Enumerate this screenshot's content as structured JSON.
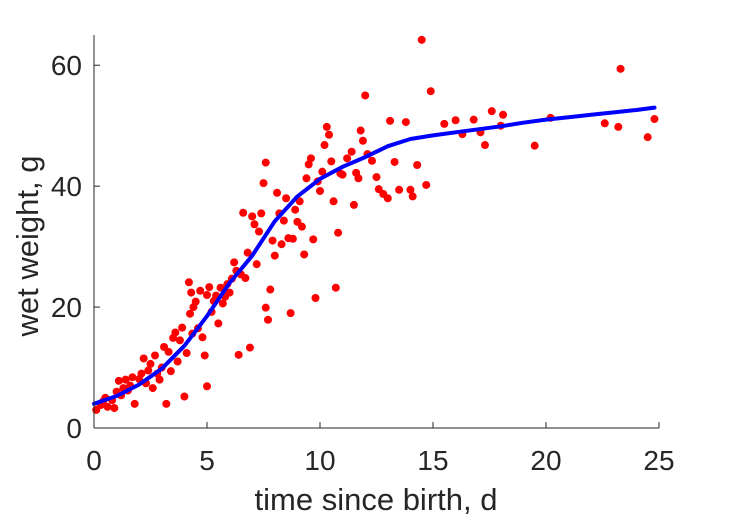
{
  "chart_data": {
    "type": "scatter",
    "title": "",
    "xlabel": "time since birth, d",
    "ylabel": "wet weight, g",
    "xlim": [
      0,
      25
    ],
    "ylim": [
      0,
      65
    ],
    "xticks": [
      0,
      5,
      10,
      15,
      20,
      25
    ],
    "yticks": [
      0,
      20,
      40,
      60
    ],
    "grid": false,
    "legend": "none",
    "series": [
      {
        "kind": "scatter",
        "color": "#ff0000",
        "points": [
          [
            0.1,
            3.0
          ],
          [
            0.3,
            3.8
          ],
          [
            0.4,
            4.4
          ],
          [
            0.5,
            5.0
          ],
          [
            0.6,
            3.5
          ],
          [
            0.8,
            4.6
          ],
          [
            0.9,
            3.3
          ],
          [
            1.0,
            6.0
          ],
          [
            1.1,
            7.8
          ],
          [
            1.2,
            5.4
          ],
          [
            1.3,
            6.6
          ],
          [
            1.4,
            8.0
          ],
          [
            1.5,
            6.2
          ],
          [
            1.6,
            7.0
          ],
          [
            1.7,
            8.4
          ],
          [
            1.8,
            4.0
          ],
          [
            2.0,
            8.1
          ],
          [
            2.1,
            9.0
          ],
          [
            2.2,
            11.5
          ],
          [
            2.3,
            7.4
          ],
          [
            2.4,
            9.5
          ],
          [
            2.5,
            10.6
          ],
          [
            2.6,
            6.6
          ],
          [
            2.7,
            12.0
          ],
          [
            2.8,
            9.0
          ],
          [
            2.9,
            8.0
          ],
          [
            3.0,
            10.0
          ],
          [
            3.1,
            13.4
          ],
          [
            3.2,
            4.0
          ],
          [
            3.3,
            12.6
          ],
          [
            3.4,
            9.4
          ],
          [
            3.5,
            14.9
          ],
          [
            3.6,
            15.8
          ],
          [
            3.7,
            11.0
          ],
          [
            3.8,
            14.5
          ],
          [
            3.9,
            16.6
          ],
          [
            4.0,
            5.2
          ],
          [
            4.1,
            12.4
          ],
          [
            4.2,
            24.1
          ],
          [
            4.25,
            18.9
          ],
          [
            4.3,
            22.4
          ],
          [
            4.35,
            15.6
          ],
          [
            4.4,
            20.0
          ],
          [
            4.5,
            20.9
          ],
          [
            4.6,
            16.5
          ],
          [
            4.7,
            22.7
          ],
          [
            4.8,
            15.0
          ],
          [
            4.9,
            12.0
          ],
          [
            5.0,
            6.9
          ],
          [
            5.0,
            22.0
          ],
          [
            5.1,
            23.3
          ],
          [
            5.2,
            19.2
          ],
          [
            5.3,
            21.0
          ],
          [
            5.4,
            21.9
          ],
          [
            5.5,
            17.3
          ],
          [
            5.6,
            23.2
          ],
          [
            5.7,
            20.6
          ],
          [
            5.8,
            21.7
          ],
          [
            5.9,
            23.8
          ],
          [
            6.0,
            22.4
          ],
          [
            6.1,
            24.7
          ],
          [
            6.2,
            27.4
          ],
          [
            6.3,
            26.0
          ],
          [
            6.4,
            12.1
          ],
          [
            6.5,
            25.4
          ],
          [
            6.6,
            35.6
          ],
          [
            6.7,
            24.8
          ],
          [
            6.8,
            29.0
          ],
          [
            6.9,
            13.3
          ],
          [
            7.0,
            35.0
          ],
          [
            7.1,
            33.7
          ],
          [
            7.2,
            27.1
          ],
          [
            7.3,
            32.5
          ],
          [
            7.4,
            35.5
          ],
          [
            7.5,
            40.5
          ],
          [
            7.6,
            43.9
          ],
          [
            7.6,
            19.9
          ],
          [
            7.7,
            17.9
          ],
          [
            7.8,
            22.9
          ],
          [
            7.9,
            31.0
          ],
          [
            8.0,
            28.5
          ],
          [
            8.1,
            38.9
          ],
          [
            8.2,
            35.5
          ],
          [
            8.3,
            30.4
          ],
          [
            8.4,
            34.3
          ],
          [
            8.5,
            38.0
          ],
          [
            8.6,
            31.4
          ],
          [
            8.7,
            19.0
          ],
          [
            8.8,
            31.3
          ],
          [
            8.9,
            36.1
          ],
          [
            9.0,
            34.1
          ],
          [
            9.1,
            37.5
          ],
          [
            9.2,
            33.3
          ],
          [
            9.3,
            28.7
          ],
          [
            9.4,
            41.3
          ],
          [
            9.5,
            43.6
          ],
          [
            9.6,
            44.6
          ],
          [
            9.7,
            31.2
          ],
          [
            9.8,
            21.5
          ],
          [
            9.9,
            40.8
          ],
          [
            10.0,
            39.2
          ],
          [
            10.1,
            42.4
          ],
          [
            10.2,
            46.8
          ],
          [
            10.3,
            49.8
          ],
          [
            10.4,
            48.5
          ],
          [
            10.5,
            44.1
          ],
          [
            10.6,
            37.5
          ],
          [
            10.7,
            23.2
          ],
          [
            10.8,
            32.3
          ],
          [
            10.9,
            42.1
          ],
          [
            11.0,
            41.9
          ],
          [
            11.2,
            44.6
          ],
          [
            11.4,
            45.7
          ],
          [
            11.5,
            36.9
          ],
          [
            11.6,
            42.2
          ],
          [
            11.7,
            41.3
          ],
          [
            11.8,
            49.2
          ],
          [
            11.9,
            47.5
          ],
          [
            12.0,
            55.0
          ],
          [
            12.1,
            45.3
          ],
          [
            12.3,
            44.2
          ],
          [
            12.5,
            41.5
          ],
          [
            12.6,
            39.5
          ],
          [
            12.8,
            38.7
          ],
          [
            13.0,
            38.0
          ],
          [
            13.1,
            50.8
          ],
          [
            13.3,
            44.0
          ],
          [
            13.5,
            39.4
          ],
          [
            13.8,
            50.6
          ],
          [
            14.0,
            39.4
          ],
          [
            14.1,
            38.3
          ],
          [
            14.3,
            43.5
          ],
          [
            14.5,
            64.2
          ],
          [
            14.7,
            40.2
          ],
          [
            14.9,
            55.7
          ],
          [
            15.5,
            50.3
          ],
          [
            16.0,
            50.9
          ],
          [
            16.3,
            48.6
          ],
          [
            16.8,
            51.0
          ],
          [
            17.1,
            48.9
          ],
          [
            17.3,
            46.8
          ],
          [
            17.6,
            52.4
          ],
          [
            18.0,
            50.0
          ],
          [
            18.1,
            51.8
          ],
          [
            19.5,
            46.7
          ],
          [
            20.2,
            51.3
          ],
          [
            22.6,
            50.4
          ],
          [
            23.2,
            49.8
          ],
          [
            23.3,
            59.4
          ],
          [
            24.5,
            48.1
          ],
          [
            24.8,
            51.1
          ]
        ]
      },
      {
        "kind": "line",
        "color": "#0000ff",
        "points": [
          [
            0,
            4.0
          ],
          [
            1,
            5.3
          ],
          [
            2,
            7.2
          ],
          [
            3,
            9.8
          ],
          [
            4,
            13.6
          ],
          [
            5,
            18.5
          ],
          [
            6,
            24.0
          ],
          [
            7,
            28.5
          ],
          [
            8,
            34.2
          ],
          [
            9,
            38.3
          ],
          [
            10,
            41.2
          ],
          [
            11,
            43.2
          ],
          [
            12,
            44.8
          ],
          [
            13,
            46.6
          ],
          [
            14,
            47.8
          ],
          [
            15,
            48.4
          ],
          [
            16,
            48.9
          ],
          [
            17,
            49.4
          ],
          [
            18,
            49.9
          ],
          [
            19,
            50.5
          ],
          [
            20,
            51.0
          ],
          [
            21,
            51.4
          ],
          [
            22,
            51.8
          ],
          [
            23,
            52.2
          ],
          [
            24,
            52.6
          ],
          [
            24.8,
            53.0
          ]
        ]
      }
    ]
  }
}
